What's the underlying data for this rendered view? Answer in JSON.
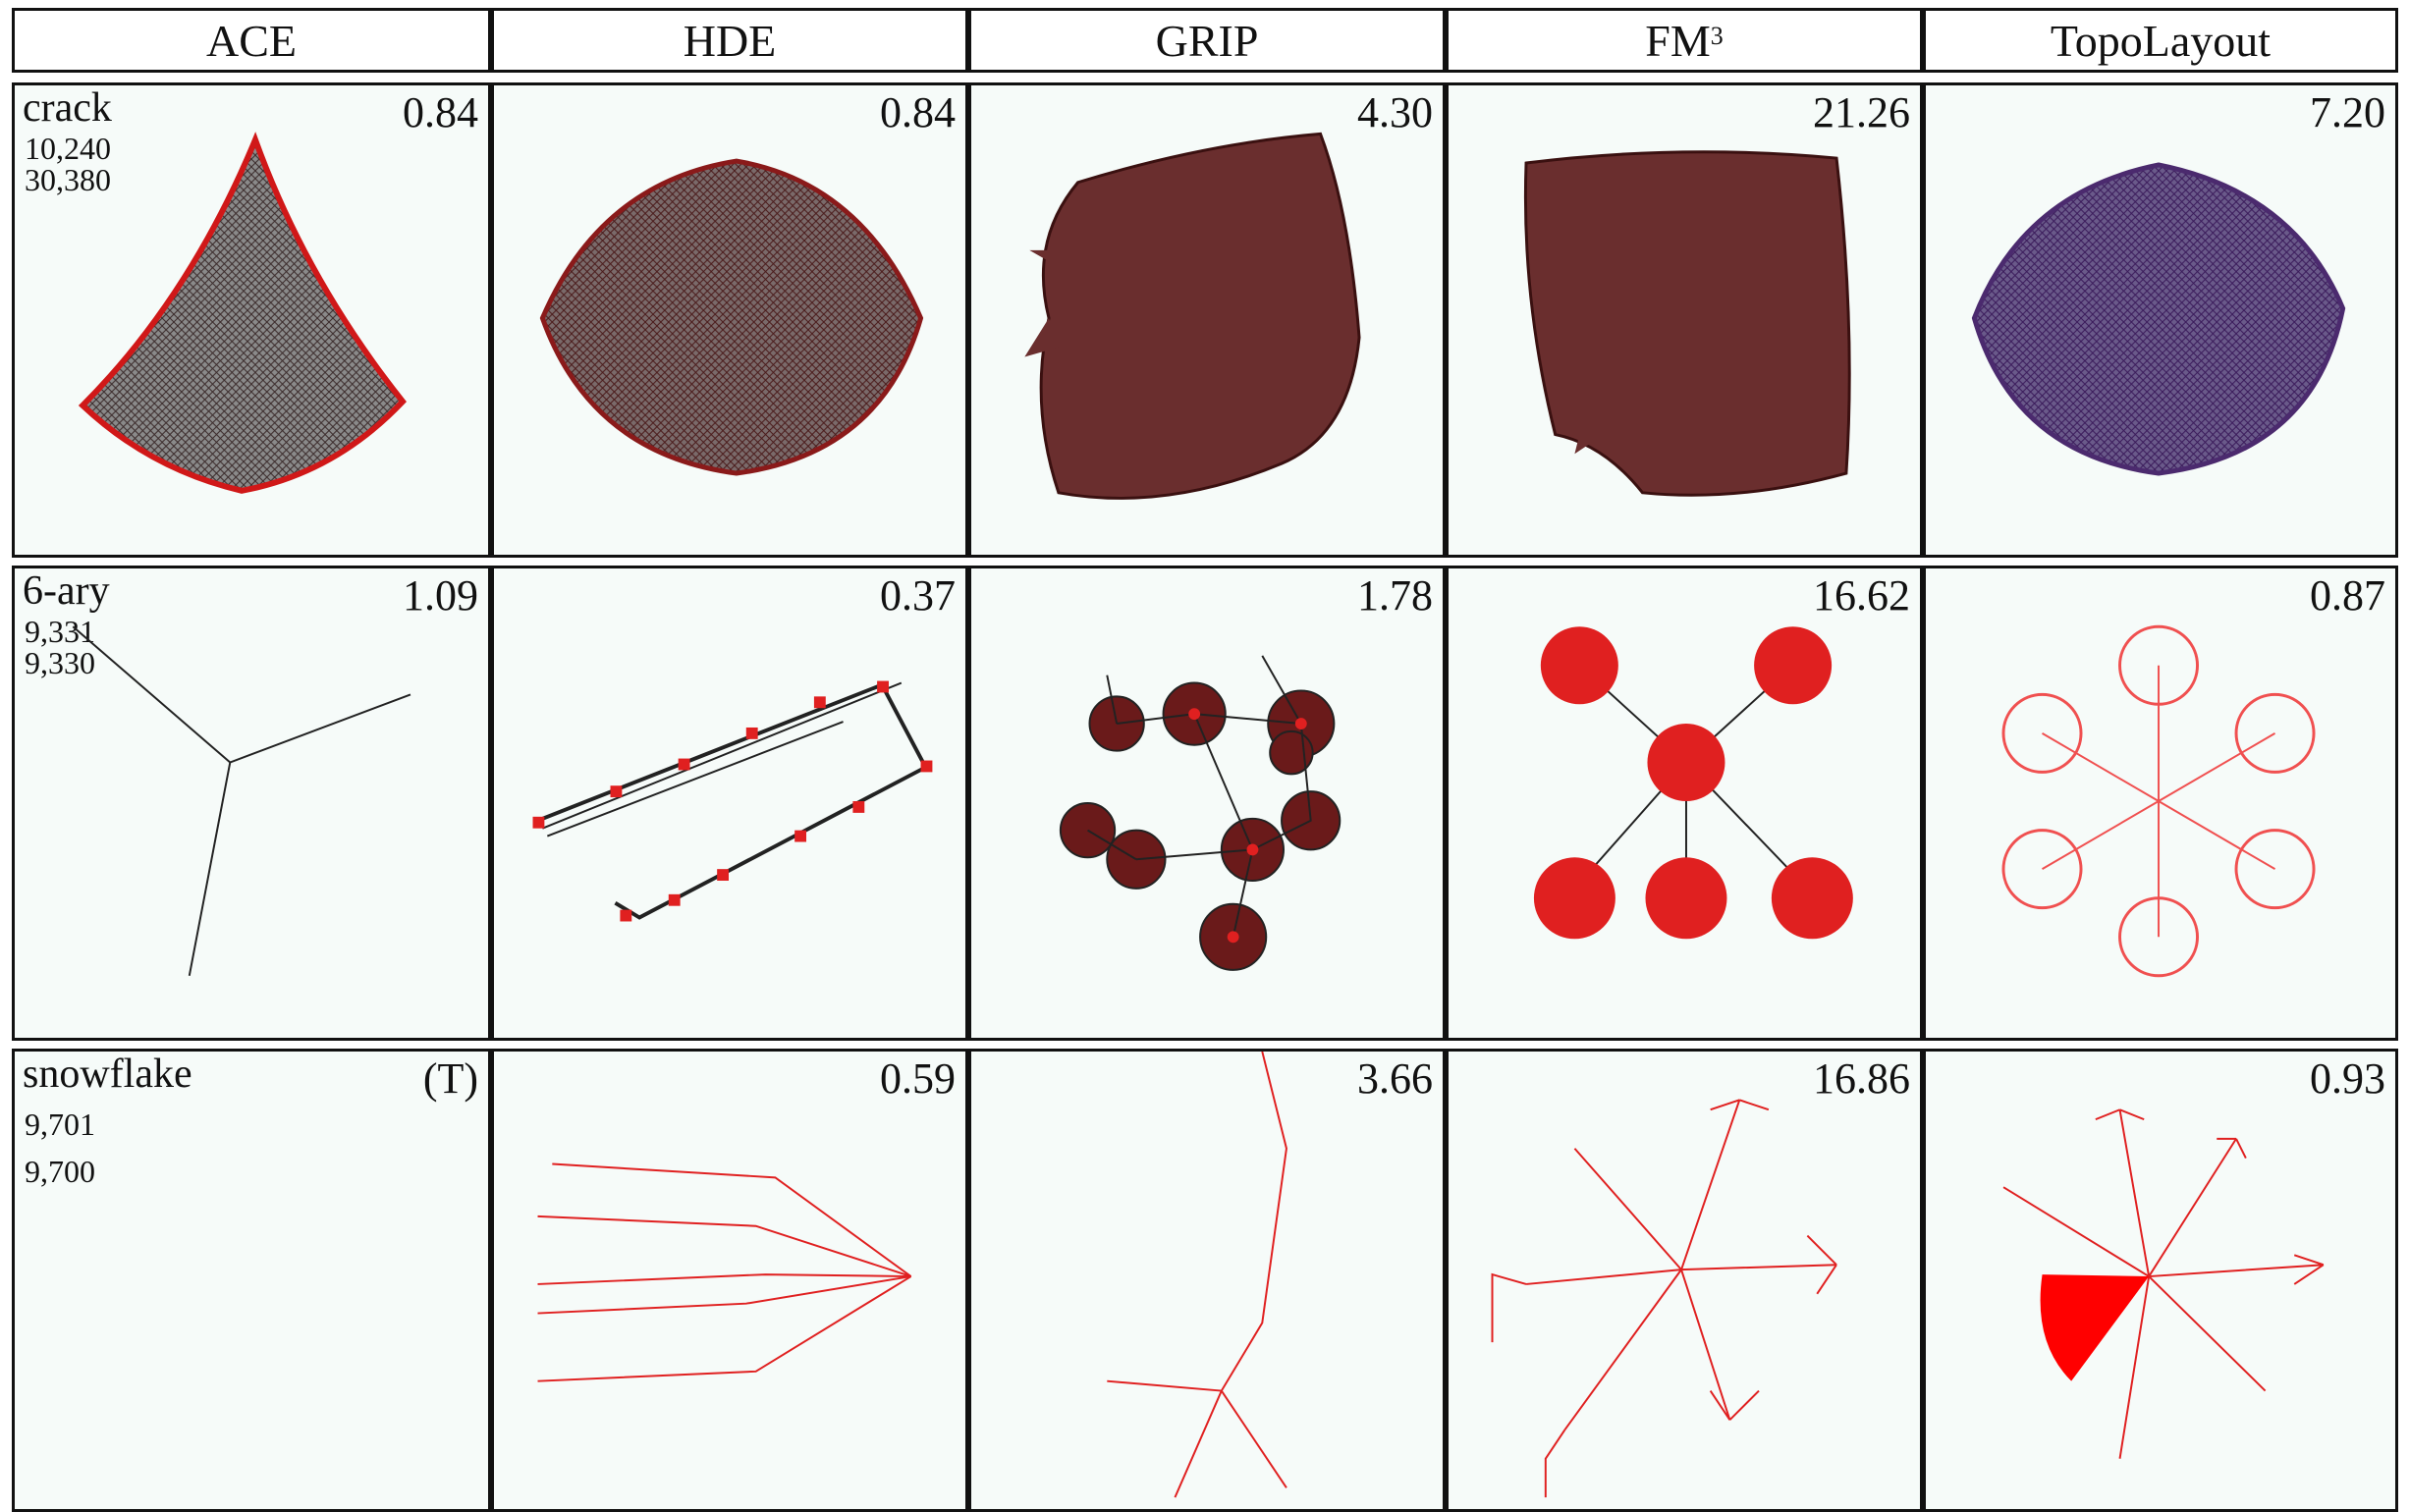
{
  "columns": [
    {
      "label": "ACE"
    },
    {
      "label": "HDE"
    },
    {
      "label": "GRIP"
    },
    {
      "label": "FM",
      "sup": "3"
    },
    {
      "label": "TopoLayout"
    }
  ],
  "rows": [
    {
      "graph": "crack",
      "vertices": "10,240",
      "edges": "30,380",
      "times": [
        "0.84",
        "0.84",
        "4.30",
        "21.26",
        "7.20"
      ]
    },
    {
      "graph": "6-ary",
      "vertices": "9,331",
      "edges": "9,330",
      "times": [
        "1.09",
        "0.37",
        "1.78",
        "16.62",
        "0.87"
      ]
    },
    {
      "graph": "snowflake",
      "vertices": "9,701",
      "edges": "9,700",
      "times": [
        "(T)",
        "0.59",
        "3.66",
        "16.86",
        "0.93"
      ]
    }
  ],
  "colors": {
    "edge_red": "#e02020",
    "mesh_dark": "#5a2a2a",
    "mesh_purple": "#4b2a6e",
    "cell_bg": "#f6fbf9"
  }
}
